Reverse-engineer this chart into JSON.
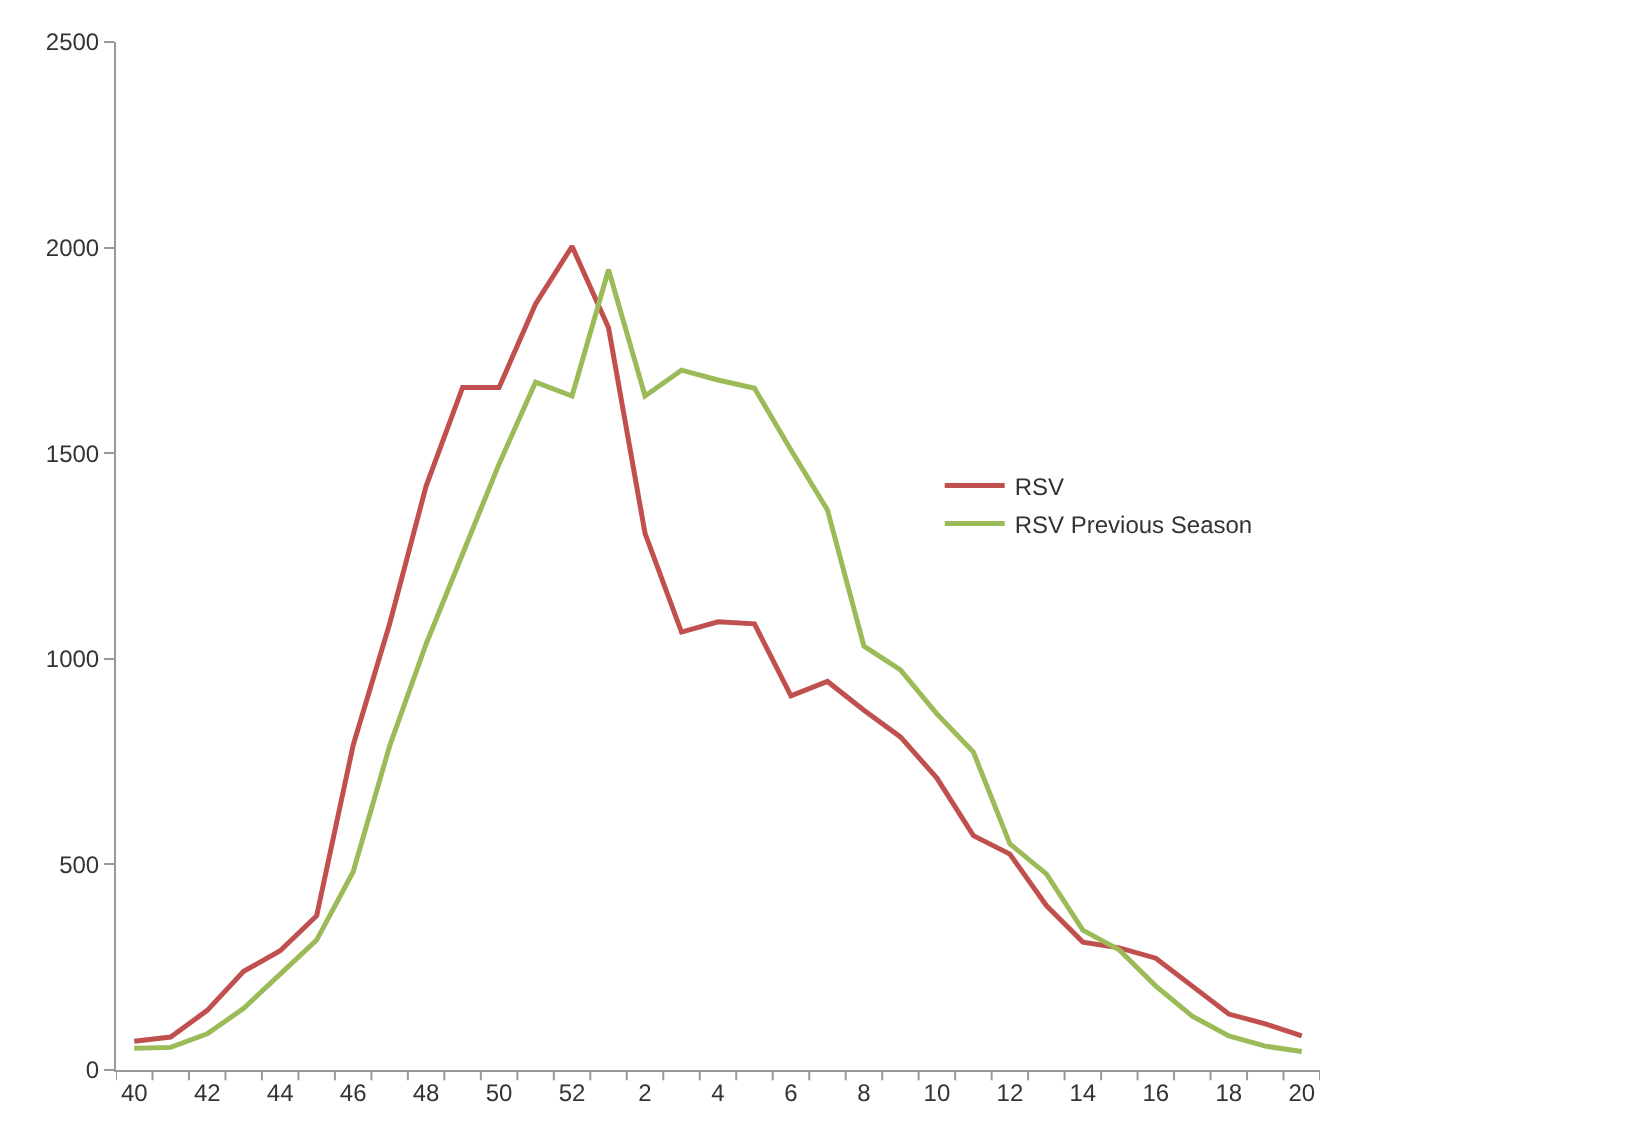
{
  "chart_data": {
    "type": "line",
    "categories": [
      "40",
      null,
      "42",
      null,
      "44",
      null,
      "46",
      null,
      "48",
      null,
      "50",
      null,
      "52",
      null,
      "2",
      null,
      "4",
      null,
      "6",
      null,
      "8",
      null,
      "10",
      null,
      "12",
      null,
      "14",
      null,
      "16",
      null,
      "18",
      null,
      "20"
    ],
    "series": [
      {
        "name": "RSV",
        "color": "#c0504d",
        "values": [
          70,
          80,
          145,
          240,
          290,
          375,
          790,
          1085,
          1420,
          1660,
          1660,
          1863,
          2003,
          1805,
          1305,
          1065,
          1090,
          1085,
          910,
          945,
          875,
          810,
          710,
          570,
          525,
          400,
          311,
          297,
          272,
          204,
          136,
          112,
          83
        ]
      },
      {
        "name": "RSV Previous Season",
        "color": "#9bbb59",
        "values": [
          53,
          55,
          88,
          150,
          233,
          316,
          482,
          788,
          1036,
          1255,
          1474,
          1673,
          1639,
          1946,
          1639,
          1702,
          1678,
          1658,
          1508,
          1362,
          1031,
          973,
          866,
          773,
          550,
          477,
          340,
          292,
          204,
          131,
          83,
          58,
          45
        ]
      }
    ],
    "ylim": [
      0,
      2500
    ],
    "yticks": [
      0,
      500,
      1000,
      1500,
      2000,
      2500
    ],
    "grid": false,
    "legend": "right",
    "marker": "none",
    "line_style": "solid"
  }
}
